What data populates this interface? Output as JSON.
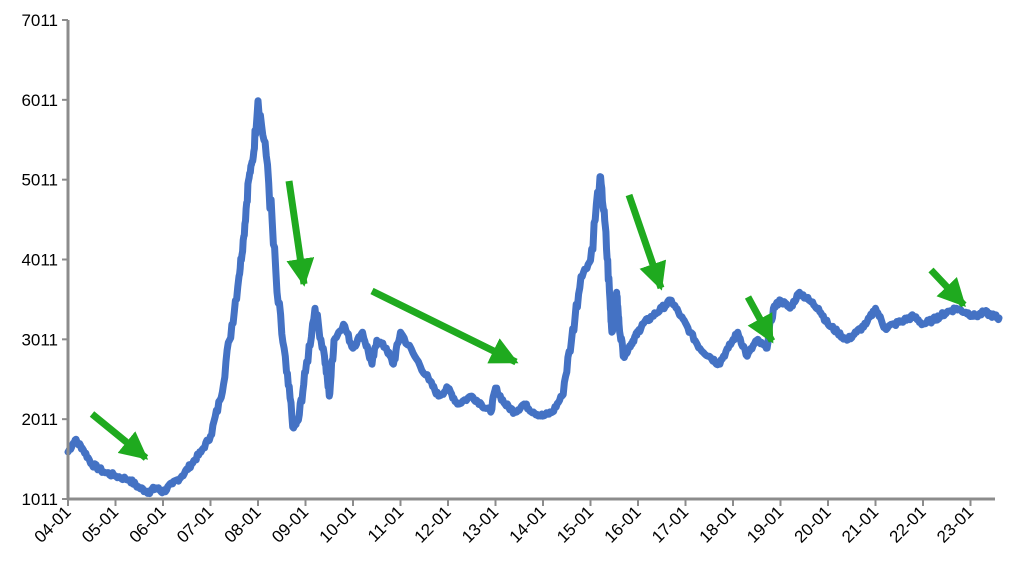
{
  "chart_data": {
    "type": "line",
    "title": "",
    "xlabel": "",
    "ylabel": "",
    "x_tick_labels": [
      "04-01",
      "05-01",
      "06-01",
      "07-01",
      "08-01",
      "09-01",
      "10-01",
      "11-01",
      "12-01",
      "13-01",
      "14-01",
      "15-01",
      "16-01",
      "17-01",
      "18-01",
      "19-01",
      "20-01",
      "21-01",
      "22-01",
      "23-01"
    ],
    "y_tick_labels": [
      "1011",
      "2011",
      "3011",
      "4011",
      "5011",
      "6011",
      "7011"
    ],
    "ylim": [
      1011,
      7011
    ],
    "xlim": [
      2004.0,
      2023.6
    ],
    "grid": false,
    "legend": "none",
    "colors": {
      "line": "#4472c4",
      "arrow": "#1faa1f",
      "axis": "#8c8c8c"
    },
    "series": [
      {
        "x": [
          2004.0,
          2004.15,
          2004.3,
          2004.5,
          2004.75,
          2005.0,
          2005.3,
          2005.5,
          2005.7,
          2005.85,
          2006.0,
          2006.2,
          2006.4,
          2006.6,
          2006.8,
          2007.0,
          2007.2,
          2007.4,
          2007.6,
          2007.7,
          2007.8,
          2007.9,
          2008.0,
          2008.2,
          2008.4,
          2008.6,
          2008.75,
          2008.85,
          2009.0,
          2009.2,
          2009.4,
          2009.5,
          2009.6,
          2009.8,
          2010.0,
          2010.2,
          2010.4,
          2010.5,
          2010.7,
          2010.85,
          2011.0,
          2011.3,
          2011.6,
          2011.8,
          2012.0,
          2012.2,
          2012.5,
          2012.7,
          2012.9,
          2013.0,
          2013.2,
          2013.4,
          2013.6,
          2013.8,
          2014.0,
          2014.2,
          2014.4,
          2014.6,
          2014.8,
          2015.0,
          2015.2,
          2015.3,
          2015.4,
          2015.45,
          2015.55,
          2015.6,
          2015.7,
          2015.8,
          2015.9,
          2016.0,
          2016.1,
          2016.3,
          2016.5,
          2016.7,
          2016.9,
          2017.1,
          2017.3,
          2017.5,
          2017.7,
          2017.9,
          2018.1,
          2018.3,
          2018.5,
          2018.7,
          2018.85,
          2019.0,
          2019.2,
          2019.4,
          2019.6,
          2019.8,
          2020.0,
          2020.2,
          2020.4,
          2020.6,
          2020.8,
          2021.0,
          2021.2,
          2021.4,
          2021.6,
          2021.8,
          2022.0,
          2022.2,
          2022.35,
          2022.5,
          2022.7,
          2022.9,
          2023.1,
          2023.3,
          2023.5,
          2023.6
        ],
        "y": [
          1600,
          1750,
          1650,
          1450,
          1350,
          1300,
          1250,
          1150,
          1100,
          1150,
          1100,
          1200,
          1300,
          1450,
          1600,
          1800,
          2250,
          3000,
          3800,
          4300,
          5000,
          5300,
          6000,
          5200,
          3600,
          2600,
          1900,
          2000,
          2600,
          3400,
          2800,
          2300,
          3000,
          3200,
          2900,
          3100,
          2700,
          3000,
          2900,
          2700,
          3100,
          2800,
          2500,
          2300,
          2400,
          2200,
          2300,
          2200,
          2100,
          2400,
          2200,
          2100,
          2200,
          2100,
          2050,
          2100,
          2300,
          3000,
          3800,
          4000,
          5050,
          4500,
          3600,
          3100,
          3600,
          3200,
          2800,
          2900,
          3000,
          3100,
          3200,
          3300,
          3400,
          3500,
          3300,
          3100,
          2900,
          2800,
          2700,
          2900,
          3100,
          2800,
          3000,
          2900,
          3400,
          3500,
          3400,
          3600,
          3500,
          3400,
          3200,
          3100,
          3000,
          3100,
          3200,
          3400,
          3150,
          3200,
          3250,
          3300,
          3200,
          3250,
          3300,
          3350,
          3400,
          3350,
          3300,
          3350,
          3300,
          3280
        ]
      }
    ]
  }
}
